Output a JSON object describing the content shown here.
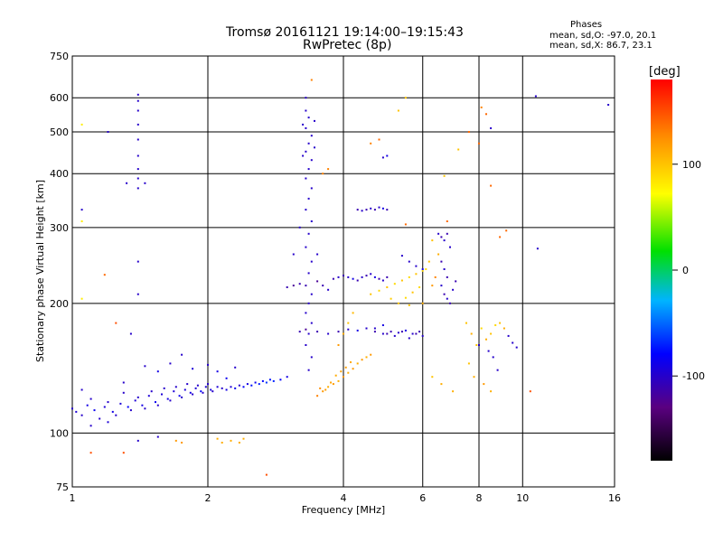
{
  "title": {
    "line1": "Tromsø 20161121 19:14:00–19:15:43",
    "line2": "RwPretec (8p)"
  },
  "legend": {
    "title": "Phases",
    "o_line": "mean, sd,O: -97.0, 20.1",
    "x_line": "mean, sd,X: 86.7, 23.1"
  },
  "colorbar": {
    "unit": "[deg]",
    "range": [
      -180,
      180
    ],
    "ticks": [
      100,
      0,
      -100
    ],
    "tick_labels": [
      "100",
      "0",
      "-100"
    ]
  },
  "chart_data": {
    "type": "scatter",
    "title": "Tromsø 20161121 19:14:00–19:15:43",
    "subtitle": "RwPretec (8p)",
    "xlabel": "Frequency [MHz]",
    "ylabel": "Stationary phase Virtual Height [km]",
    "xscale": "log",
    "yscale": "log",
    "xlim": [
      1,
      16
    ],
    "ylim": [
      75,
      750
    ],
    "x_ticks": [
      1,
      2,
      4,
      6,
      8,
      10,
      16
    ],
    "x_tick_labels": [
      "1",
      "2",
      "4",
      "6",
      "8",
      "10",
      "16"
    ],
    "y_ticks": [
      75,
      100,
      200,
      300,
      400,
      500,
      600,
      750
    ],
    "y_tick_labels": [
      "75",
      "100",
      "200",
      "300",
      "400",
      "500",
      "600",
      "750"
    ],
    "grid": true,
    "color_by": "phase [deg]",
    "points": [
      [
        1.0,
        114,
        -100
      ],
      [
        1.02,
        112,
        -95
      ],
      [
        1.05,
        110,
        -100
      ],
      [
        1.08,
        116,
        -90
      ],
      [
        1.1,
        120,
        -100
      ],
      [
        1.12,
        113,
        -85
      ],
      [
        1.15,
        108,
        -100
      ],
      [
        1.18,
        115,
        -95
      ],
      [
        1.2,
        118,
        -100
      ],
      [
        1.23,
        112,
        -90
      ],
      [
        1.25,
        110,
        -100
      ],
      [
        1.28,
        117,
        -95
      ],
      [
        1.3,
        124,
        -100
      ],
      [
        1.33,
        115,
        -80
      ],
      [
        1.35,
        113,
        -100
      ],
      [
        1.38,
        119,
        -95
      ],
      [
        1.4,
        121,
        -100
      ],
      [
        1.43,
        116,
        -90
      ],
      [
        1.45,
        114,
        -100
      ],
      [
        1.48,
        122,
        -95
      ],
      [
        1.5,
        125,
        -100
      ],
      [
        1.53,
        118,
        -85
      ],
      [
        1.55,
        116,
        -100
      ],
      [
        1.58,
        123,
        -95
      ],
      [
        1.6,
        127,
        -100
      ],
      [
        1.63,
        120,
        -90
      ],
      [
        1.65,
        119,
        -100
      ],
      [
        1.68,
        125,
        -95
      ],
      [
        1.7,
        128,
        -100
      ],
      [
        1.73,
        122,
        -85
      ],
      [
        1.75,
        121,
        -100
      ],
      [
        1.78,
        126,
        -95
      ],
      [
        1.8,
        130,
        -100
      ],
      [
        1.83,
        124,
        -90
      ],
      [
        1.85,
        123,
        -100
      ],
      [
        1.88,
        127,
        -95
      ],
      [
        1.9,
        129,
        -100
      ],
      [
        1.93,
        125,
        -80
      ],
      [
        1.95,
        124,
        -100
      ],
      [
        1.98,
        128,
        -95
      ],
      [
        2.0,
        130,
        -100
      ],
      [
        2.03,
        126,
        -90
      ],
      [
        2.05,
        125,
        -100
      ],
      [
        2.1,
        128,
        -95
      ],
      [
        2.15,
        127,
        -100
      ],
      [
        2.2,
        126,
        -90
      ],
      [
        2.25,
        128,
        -95
      ],
      [
        2.3,
        127,
        -85
      ],
      [
        2.35,
        129,
        -100
      ],
      [
        2.4,
        128,
        -80
      ],
      [
        2.45,
        130,
        -90
      ],
      [
        2.5,
        129,
        -75
      ],
      [
        2.55,
        131,
        -85
      ],
      [
        2.6,
        130,
        -70
      ],
      [
        2.65,
        132,
        -80
      ],
      [
        2.7,
        131,
        -65
      ],
      [
        2.75,
        133,
        -75
      ],
      [
        2.8,
        132,
        -70
      ],
      [
        2.9,
        133,
        -80
      ],
      [
        3.0,
        135,
        -90
      ],
      [
        1.05,
        126,
        -100
      ],
      [
        1.1,
        104,
        -100
      ],
      [
        1.2,
        106,
        -95
      ],
      [
        1.3,
        131,
        -100
      ],
      [
        1.45,
        143,
        -100
      ],
      [
        1.55,
        139,
        -90
      ],
      [
        1.65,
        145,
        -100
      ],
      [
        1.75,
        152,
        -100
      ],
      [
        1.85,
        141,
        -95
      ],
      [
        2.0,
        144,
        -100
      ],
      [
        2.1,
        139,
        -90
      ],
      [
        2.2,
        134,
        -85
      ],
      [
        2.3,
        142,
        -100
      ],
      [
        1.4,
        610,
        -100
      ],
      [
        1.4,
        590,
        -100
      ],
      [
        1.4,
        560,
        -100
      ],
      [
        1.4,
        520,
        -100
      ],
      [
        1.4,
        480,
        -100
      ],
      [
        1.4,
        440,
        -100
      ],
      [
        1.4,
        410,
        -100
      ],
      [
        1.4,
        390,
        -100
      ],
      [
        1.4,
        370,
        -100
      ],
      [
        1.45,
        380,
        -100
      ],
      [
        1.4,
        250,
        -100
      ],
      [
        1.4,
        210,
        -100
      ],
      [
        1.32,
        380,
        -100
      ],
      [
        1.2,
        500,
        -100
      ],
      [
        1.05,
        330,
        -100
      ],
      [
        1.05,
        310,
        80
      ],
      [
        1.05,
        520,
        80
      ],
      [
        1.05,
        205,
        80
      ],
      [
        1.18,
        233,
        140
      ],
      [
        1.25,
        180,
        150
      ],
      [
        1.35,
        170,
        -100
      ],
      [
        1.4,
        96,
        -100
      ],
      [
        1.55,
        98,
        -100
      ],
      [
        1.7,
        96,
        120
      ],
      [
        1.75,
        95,
        120
      ],
      [
        2.1,
        97,
        110
      ],
      [
        2.15,
        95,
        110
      ],
      [
        2.25,
        96,
        110
      ],
      [
        2.35,
        95,
        110
      ],
      [
        2.4,
        97,
        110
      ],
      [
        1.1,
        90,
        150
      ],
      [
        1.3,
        90,
        150
      ],
      [
        2.7,
        80,
        150
      ],
      [
        3.3,
        600,
        -100
      ],
      [
        3.3,
        560,
        -100
      ],
      [
        3.35,
        540,
        -100
      ],
      [
        3.3,
        510,
        -100
      ],
      [
        3.4,
        490,
        -100
      ],
      [
        3.35,
        470,
        -100
      ],
      [
        3.3,
        450,
        -100
      ],
      [
        3.4,
        430,
        -100
      ],
      [
        3.35,
        410,
        -100
      ],
      [
        3.3,
        390,
        -100
      ],
      [
        3.4,
        370,
        -100
      ],
      [
        3.35,
        350,
        -100
      ],
      [
        3.3,
        330,
        -100
      ],
      [
        3.4,
        310,
        -100
      ],
      [
        3.35,
        290,
        -100
      ],
      [
        3.3,
        270,
        -100
      ],
      [
        3.4,
        250,
        -100
      ],
      [
        3.35,
        235,
        -100
      ],
      [
        3.3,
        220,
        -110
      ],
      [
        3.4,
        210,
        -100
      ],
      [
        3.35,
        200,
        -100
      ],
      [
        3.3,
        190,
        -100
      ],
      [
        3.4,
        180,
        -100
      ],
      [
        3.35,
        170,
        -100
      ],
      [
        3.3,
        160,
        -100
      ],
      [
        3.4,
        150,
        -100
      ],
      [
        3.35,
        140,
        -100
      ],
      [
        3.25,
        520,
        -100
      ],
      [
        3.45,
        530,
        -100
      ],
      [
        3.45,
        460,
        -100
      ],
      [
        3.25,
        440,
        -100
      ],
      [
        3.2,
        300,
        -100
      ],
      [
        3.1,
        260,
        -100
      ],
      [
        3.5,
        260,
        -100
      ],
      [
        3.4,
        660,
        130
      ],
      [
        3.6,
        400,
        130
      ],
      [
        3.7,
        410,
        130
      ],
      [
        3.0,
        218,
        -110
      ],
      [
        3.1,
        220,
        -120
      ],
      [
        3.2,
        222,
        -110
      ],
      [
        3.5,
        225,
        -120
      ],
      [
        3.6,
        220,
        -110
      ],
      [
        3.7,
        215,
        -100
      ],
      [
        3.8,
        228,
        -110
      ],
      [
        3.9,
        230,
        -100
      ],
      [
        4.0,
        232,
        -110
      ],
      [
        4.1,
        230,
        -100
      ],
      [
        4.2,
        228,
        -90
      ],
      [
        4.3,
        226,
        -110
      ],
      [
        4.4,
        230,
        -100
      ],
      [
        4.5,
        232,
        -110
      ],
      [
        4.6,
        234,
        -100
      ],
      [
        4.7,
        230,
        -90
      ],
      [
        4.8,
        228,
        -110
      ],
      [
        4.9,
        226,
        -100
      ],
      [
        5.0,
        230,
        -110
      ],
      [
        3.2,
        172,
        -110
      ],
      [
        3.3,
        174,
        -120
      ],
      [
        3.5,
        172,
        -110
      ],
      [
        3.7,
        170,
        -100
      ],
      [
        3.9,
        172,
        -110
      ],
      [
        4.1,
        174,
        -100
      ],
      [
        4.3,
        173,
        -90
      ],
      [
        4.5,
        175,
        -100
      ],
      [
        4.7,
        172,
        -110
      ],
      [
        4.9,
        170,
        -100
      ],
      [
        5.1,
        172,
        -110
      ],
      [
        5.3,
        171,
        -100
      ],
      [
        5.5,
        173,
        -90
      ],
      [
        5.7,
        170,
        -100
      ],
      [
        5.9,
        172,
        -110
      ],
      [
        3.6,
        125,
        120
      ],
      [
        3.7,
        128,
        110
      ],
      [
        3.8,
        130,
        120
      ],
      [
        3.9,
        132,
        110
      ],
      [
        4.0,
        135,
        120
      ],
      [
        4.1,
        138,
        110
      ],
      [
        4.2,
        141,
        120
      ],
      [
        4.3,
        145,
        110
      ],
      [
        4.4,
        148,
        120
      ],
      [
        4.5,
        150,
        110
      ],
      [
        4.6,
        152,
        120
      ],
      [
        3.5,
        122,
        130
      ],
      [
        3.55,
        127,
        125
      ],
      [
        3.65,
        126,
        118
      ],
      [
        3.75,
        131,
        114
      ],
      [
        3.85,
        136,
        112
      ],
      [
        3.95,
        139,
        116
      ],
      [
        4.05,
        142,
        118
      ],
      [
        4.15,
        146,
        112
      ],
      [
        3.9,
        160,
        120
      ],
      [
        4.0,
        170,
        110
      ],
      [
        4.1,
        180,
        100
      ],
      [
        4.2,
        190,
        105
      ],
      [
        4.3,
        330,
        -110
      ],
      [
        4.4,
        328,
        -100
      ],
      [
        4.5,
        330,
        -110
      ],
      [
        4.6,
        332,
        -100
      ],
      [
        4.7,
        330,
        -110
      ],
      [
        4.8,
        334,
        -100
      ],
      [
        4.9,
        332,
        -90
      ],
      [
        5.0,
        330,
        -110
      ],
      [
        4.9,
        436,
        -100
      ],
      [
        5.0,
        440,
        -90
      ],
      [
        4.6,
        470,
        130
      ],
      [
        4.8,
        480,
        140
      ],
      [
        4.6,
        210,
        100
      ],
      [
        4.8,
        214,
        90
      ],
      [
        5.0,
        218,
        100
      ],
      [
        5.2,
        222,
        90
      ],
      [
        5.4,
        226,
        100
      ],
      [
        5.6,
        230,
        90
      ],
      [
        5.8,
        234,
        100
      ],
      [
        6.0,
        238,
        90
      ],
      [
        5.3,
        200,
        100
      ],
      [
        5.5,
        206,
        90
      ],
      [
        5.7,
        212,
        100
      ],
      [
        5.9,
        218,
        90
      ],
      [
        5.1,
        205,
        95
      ],
      [
        5.6,
        198,
        100
      ],
      [
        5.4,
        258,
        -100
      ],
      [
        5.6,
        250,
        -100
      ],
      [
        5.8,
        244,
        -100
      ],
      [
        6.0,
        240,
        -90
      ],
      [
        5.5,
        305,
        140
      ],
      [
        5.3,
        560,
        100
      ],
      [
        5.5,
        600,
        100
      ],
      [
        5.0,
        170,
        -110
      ],
      [
        5.2,
        168,
        -100
      ],
      [
        5.4,
        172,
        -110
      ],
      [
        5.6,
        166,
        -100
      ],
      [
        5.8,
        170,
        -110
      ],
      [
        6.0,
        168,
        -100
      ],
      [
        4.7,
        175,
        -100
      ],
      [
        4.9,
        178,
        -90
      ],
      [
        6.5,
        290,
        -100
      ],
      [
        6.6,
        285,
        -110
      ],
      [
        6.7,
        280,
        -100
      ],
      [
        6.8,
        290,
        -110
      ],
      [
        6.9,
        270,
        -100
      ],
      [
        6.6,
        250,
        -110
      ],
      [
        6.7,
        240,
        -100
      ],
      [
        6.8,
        230,
        -110
      ],
      [
        6.6,
        220,
        -100
      ],
      [
        6.7,
        210,
        -110
      ],
      [
        6.8,
        205,
        -100
      ],
      [
        6.9,
        200,
        -110
      ],
      [
        7.0,
        215,
        -100
      ],
      [
        7.1,
        225,
        -110
      ],
      [
        6.8,
        310,
        140
      ],
      [
        6.3,
        280,
        100
      ],
      [
        6.5,
        260,
        110
      ],
      [
        6.1,
        240,
        90
      ],
      [
        6.2,
        250,
        100
      ],
      [
        6.3,
        220,
        120
      ],
      [
        6.4,
        230,
        130
      ],
      [
        6.0,
        200,
        110
      ],
      [
        6.7,
        395,
        100
      ],
      [
        7.5,
        180,
        100
      ],
      [
        7.7,
        170,
        110
      ],
      [
        7.9,
        160,
        100
      ],
      [
        8.1,
        175,
        90
      ],
      [
        8.3,
        165,
        110
      ],
      [
        8.5,
        170,
        100
      ],
      [
        8.7,
        178,
        90
      ],
      [
        8.9,
        180,
        100
      ],
      [
        9.1,
        175,
        110
      ],
      [
        9.3,
        168,
        -100
      ],
      [
        9.5,
        162,
        -100
      ],
      [
        9.7,
        158,
        -100
      ],
      [
        8.0,
        160,
        -100
      ],
      [
        8.4,
        155,
        -100
      ],
      [
        8.6,
        150,
        -100
      ],
      [
        8.8,
        140,
        -100
      ],
      [
        7.6,
        145,
        100
      ],
      [
        7.8,
        135,
        110
      ],
      [
        8.2,
        130,
        120
      ],
      [
        8.5,
        125,
        110
      ],
      [
        6.6,
        130,
        110
      ],
      [
        6.3,
        135,
        100
      ],
      [
        7.0,
        125,
        110
      ],
      [
        8.1,
        570,
        130
      ],
      [
        8.3,
        550,
        140
      ],
      [
        8.5,
        510,
        -100
      ],
      [
        10.7,
        605,
        -100
      ],
      [
        15.5,
        578,
        -100
      ],
      [
        8.0,
        470,
        140
      ],
      [
        7.6,
        500,
        140
      ],
      [
        7.2,
        455,
        100
      ],
      [
        8.5,
        375,
        140
      ],
      [
        9.2,
        295,
        140
      ],
      [
        8.9,
        285,
        140
      ],
      [
        10.8,
        268,
        -100
      ],
      [
        10.4,
        125,
        150
      ]
    ]
  }
}
